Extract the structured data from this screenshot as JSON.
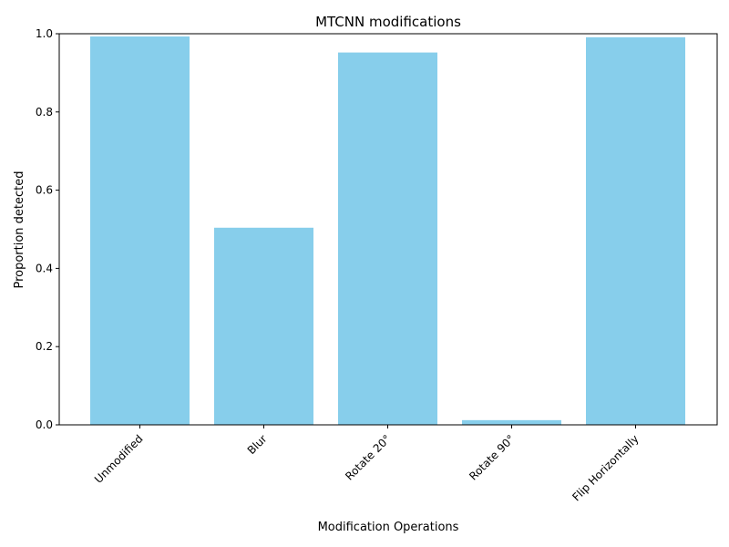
{
  "chart_data": {
    "type": "bar",
    "title": "MTCNN modifications",
    "xlabel": "Modification Operations",
    "ylabel": "Proportion detected",
    "categories": [
      "Unmodified",
      "Blur",
      "Rotate 20°",
      "Rotate 90°",
      "Flip Horizontally"
    ],
    "values": [
      0.993,
      0.504,
      0.952,
      0.012,
      0.991
    ],
    "ylim": [
      0,
      1.0
    ],
    "yticks": [
      "0.0",
      "0.2",
      "0.4",
      "0.6",
      "0.8",
      "1.0"
    ],
    "bar_color": "#87CEEB",
    "xtick_rotation_deg": 45,
    "grid": false,
    "legend": "none"
  }
}
